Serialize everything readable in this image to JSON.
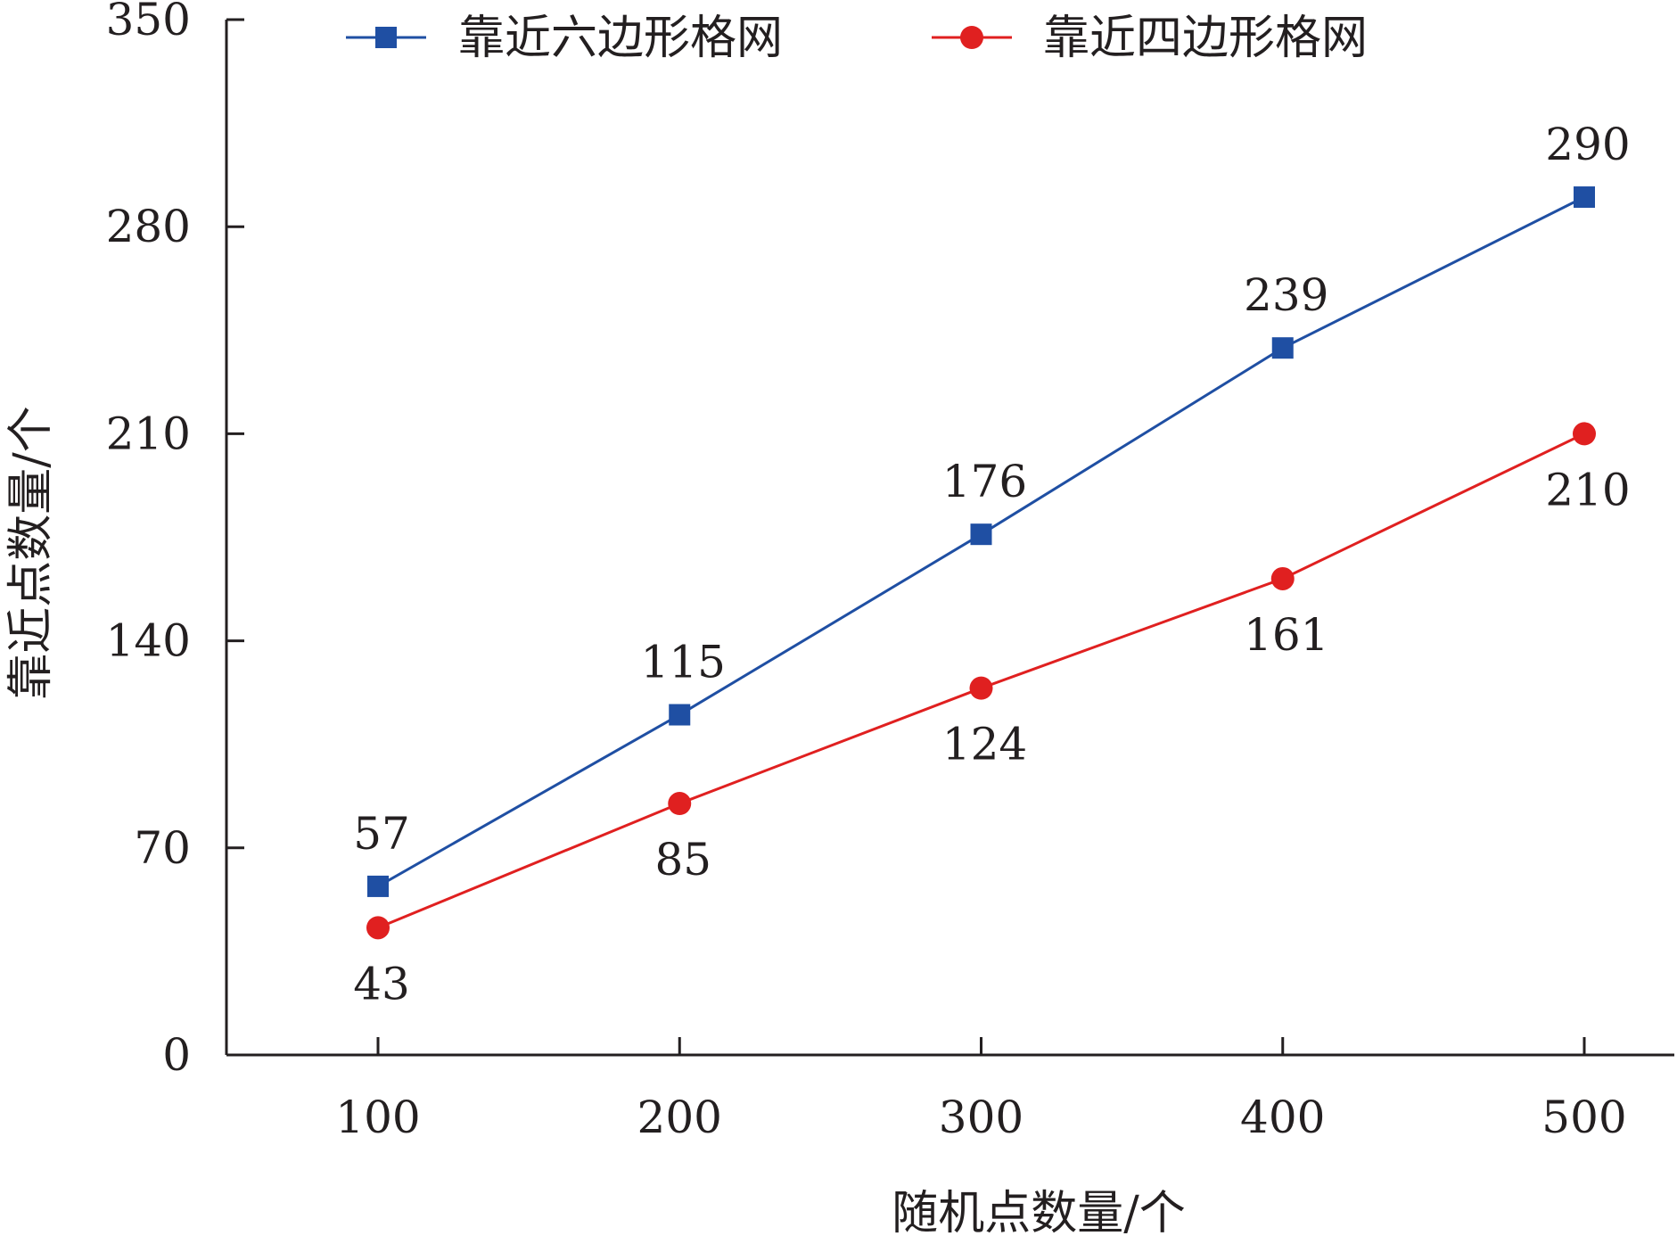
{
  "chart_data": {
    "type": "line",
    "xlabel": "随机点数量/个",
    "ylabel": "靠近点数量/个",
    "categories": [
      100,
      200,
      300,
      400,
      500
    ],
    "y_ticks": [
      0,
      70,
      140,
      210,
      280,
      350
    ],
    "ylim": [
      0,
      350
    ],
    "grid": false,
    "legend_position": "top",
    "series": [
      {
        "name": "靠近六边形格网",
        "values": [
          57,
          115,
          176,
          239,
          290
        ],
        "color": "#1f4fa3",
        "marker": "square",
        "label_position": "above"
      },
      {
        "name": "靠近四边形格网",
        "values": [
          43,
          85,
          124,
          161,
          210
        ],
        "color": "#e02020",
        "marker": "circle",
        "label_position": "below"
      }
    ]
  }
}
